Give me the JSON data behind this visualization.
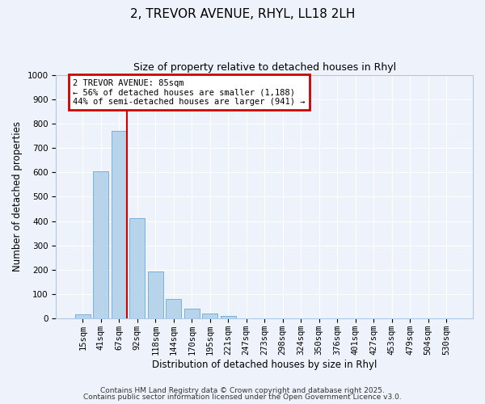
{
  "title": "2, TREVOR AVENUE, RHYL, LL18 2LH",
  "subtitle": "Size of property relative to detached houses in Rhyl",
  "xlabel": "Distribution of detached houses by size in Rhyl",
  "ylabel": "Number of detached properties",
  "bin_labels": [
    "15sqm",
    "41sqm",
    "67sqm",
    "92sqm",
    "118sqm",
    "144sqm",
    "170sqm",
    "195sqm",
    "221sqm",
    "247sqm",
    "273sqm",
    "298sqm",
    "324sqm",
    "350sqm",
    "376sqm",
    "401sqm",
    "427sqm",
    "453sqm",
    "479sqm",
    "504sqm",
    "530sqm"
  ],
  "bar_values": [
    15,
    605,
    770,
    410,
    193,
    78,
    40,
    18,
    10,
    0,
    0,
    0,
    0,
    0,
    0,
    0,
    0,
    0,
    0,
    0,
    0
  ],
  "bar_color": "#b8d4ea",
  "bar_edge_color": "#6aaad4",
  "vline_color": "#cc0000",
  "annotation_line1": "2 TREVOR AVENUE: 85sqm",
  "annotation_line2": "← 56% of detached houses are smaller (1,188)",
  "annotation_line3": "44% of semi-detached houses are larger (941) →",
  "annotation_box_color": "#cc0000",
  "ylim": [
    0,
    1000
  ],
  "yticks": [
    0,
    100,
    200,
    300,
    400,
    500,
    600,
    700,
    800,
    900,
    1000
  ],
  "bg_color": "#eef2fa",
  "footer1": "Contains HM Land Registry data © Crown copyright and database right 2025.",
  "footer2": "Contains public sector information licensed under the Open Government Licence v3.0.",
  "grid_color": "#ffffff",
  "title_fontsize": 11,
  "subtitle_fontsize": 9,
  "axis_label_fontsize": 8.5,
  "tick_fontsize": 7.5,
  "footer_fontsize": 6.5
}
